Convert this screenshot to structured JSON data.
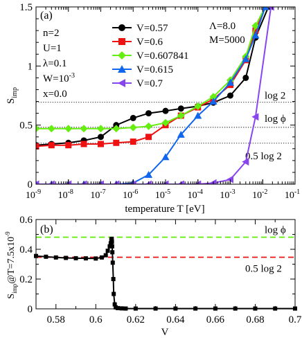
{
  "chart_data": [
    {
      "panel_label": "(a)",
      "type": "line",
      "xscale": "log",
      "xlim": [
        1e-09,
        0.1
      ],
      "ylim": [
        0,
        1.5
      ],
      "xlabel": "temperature T [eV]",
      "ylabel": "S",
      "ylabel_sub": "imp",
      "x_ticks": [
        {
          "v": 1e-09,
          "base": "10",
          "exp": "-9"
        },
        {
          "v": 1e-08,
          "base": "10",
          "exp": "-8"
        },
        {
          "v": 1e-07,
          "base": "10",
          "exp": "-7"
        },
        {
          "v": 1e-06,
          "base": "10",
          "exp": "-6"
        },
        {
          "v": 1e-05,
          "base": "10",
          "exp": "-5"
        },
        {
          "v": 0.0001,
          "base": "10",
          "exp": "-4"
        },
        {
          "v": 0.001,
          "base": "10",
          "exp": "-3"
        },
        {
          "v": 0.01,
          "base": "10",
          "exp": "-2"
        },
        {
          "v": 0.1,
          "base": "10",
          "exp": "-1"
        }
      ],
      "y_ticks": [
        {
          "v": 0,
          "label": "0"
        },
        {
          "v": 0.5,
          "label": "0.5"
        },
        {
          "v": 1,
          "label": "1"
        },
        {
          "v": 1.5,
          "label": "1.5"
        }
      ],
      "params": [
        "n=2",
        "U=1",
        "λ=0.1",
        "W=10",
        "x=0.0"
      ],
      "w_exp": "-3",
      "params_right": [
        "Λ=8.0",
        "M=5000"
      ],
      "reference_lines": [
        {
          "y": 0.6931,
          "label": "log 2"
        },
        {
          "y": 0.4812,
          "label": "log ϕ"
        },
        {
          "y": 0.3466,
          "label": "0.5 log 2"
        }
      ],
      "series": [
        {
          "name": "V=0.57",
          "color": "#000000",
          "marker": "circle",
          "x": [
            1e-09,
            3e-09,
            1e-08,
            3e-08,
            1e-07,
            3e-07,
            1e-06,
            3e-06,
            1e-05,
            3e-05,
            0.0001,
            0.0003,
            0.001,
            0.003,
            0.006,
            0.015
          ],
          "y": [
            0.33,
            0.34,
            0.35,
            0.37,
            0.4,
            0.5,
            0.56,
            0.6,
            0.62,
            0.64,
            0.66,
            0.69,
            0.75,
            0.9,
            1.24,
            1.5
          ]
        },
        {
          "name": "V=0.6",
          "color": "#ee1111",
          "marker": "square",
          "x": [
            1e-09,
            3e-09,
            1e-08,
            3e-08,
            1e-07,
            3e-07,
            1e-06,
            3e-06,
            1e-05,
            3e-05,
            0.0001,
            0.0003,
            0.001,
            0.003,
            0.006,
            0.012
          ],
          "y": [
            0.32,
            0.33,
            0.33,
            0.34,
            0.34,
            0.35,
            0.36,
            0.4,
            0.5,
            0.58,
            0.65,
            0.72,
            0.84,
            1.05,
            1.3,
            1.5
          ]
        },
        {
          "name": "V=0.607841",
          "color": "#66ee11",
          "marker": "diamond",
          "x": [
            1e-09,
            3e-09,
            1e-08,
            3e-08,
            1e-07,
            3e-07,
            1e-06,
            3e-06,
            1e-05,
            3e-05,
            0.0001,
            0.0003,
            0.001,
            0.003,
            0.006,
            0.012
          ],
          "y": [
            0.47,
            0.47,
            0.47,
            0.47,
            0.47,
            0.47,
            0.48,
            0.49,
            0.52,
            0.58,
            0.66,
            0.74,
            0.88,
            1.08,
            1.34,
            1.5
          ]
        },
        {
          "name": "V=0.615",
          "color": "#1166ee",
          "marker": "triangle-up",
          "x": [
            1e-09,
            3e-09,
            1e-08,
            3e-08,
            1e-07,
            3e-07,
            1e-06,
            3e-06,
            1e-05,
            3e-05,
            0.0001,
            0.0003,
            0.001,
            0.003,
            0.006,
            0.012
          ],
          "y": [
            0.0,
            0.0,
            0.0,
            0.0,
            0.0,
            0.0,
            0.01,
            0.08,
            0.23,
            0.42,
            0.58,
            0.7,
            0.86,
            1.06,
            1.26,
            1.5
          ]
        },
        {
          "name": "V=0.7",
          "color": "#8844ee",
          "marker": "triangle-left",
          "x": [
            1e-09,
            3e-09,
            1e-08,
            3e-08,
            1e-07,
            3e-07,
            1e-06,
            3e-06,
            1e-05,
            3e-05,
            0.0001,
            0.0003,
            0.001,
            0.003,
            0.006,
            0.018
          ],
          "y": [
            0.0,
            0.0,
            0.0,
            0.0,
            0.0,
            0.0,
            0.0,
            0.0,
            0.0,
            0.0,
            0.0,
            0.01,
            0.04,
            0.19,
            0.57,
            1.5
          ]
        }
      ]
    },
    {
      "panel_label": "(b)",
      "type": "line",
      "xlim": [
        0.57,
        0.7
      ],
      "ylim": [
        0,
        0.6
      ],
      "xlabel": "V",
      "ylabel": "S",
      "ylabel_sub": "imp",
      "ylabel_tail": "@T=7.5x10",
      "ylabel_exp": "-9",
      "x_ticks": [
        {
          "v": 0.58,
          "label": "0.58"
        },
        {
          "v": 0.6,
          "label": "0.6"
        },
        {
          "v": 0.62,
          "label": "0.62"
        },
        {
          "v": 0.64,
          "label": "0.64"
        },
        {
          "v": 0.66,
          "label": "0.66"
        },
        {
          "v": 0.68,
          "label": "0.68"
        },
        {
          "v": 0.7,
          "label": "0.7"
        }
      ],
      "y_ticks": [
        {
          "v": 0,
          "label": "0"
        },
        {
          "v": 0.2,
          "label": "0.2"
        },
        {
          "v": 0.4,
          "label": "0.4"
        },
        {
          "v": 0.6,
          "label": "0.6"
        }
      ],
      "reference_lines": [
        {
          "y": 0.4812,
          "label": "log ϕ",
          "color": "#66ee11"
        },
        {
          "y": 0.3466,
          "label": "0.5 log 2",
          "color": "#ee1111"
        }
      ],
      "series": [
        {
          "name": "",
          "color": "#000000",
          "marker": "square",
          "x": [
            0.57,
            0.575,
            0.58,
            0.585,
            0.59,
            0.595,
            0.6,
            0.603,
            0.605,
            0.606,
            0.607,
            0.6075,
            0.6078,
            0.6079,
            0.608,
            0.6081,
            0.6082,
            0.6083,
            0.6085,
            0.6088,
            0.609,
            0.6095,
            0.61,
            0.611,
            0.613,
            0.615,
            0.62,
            0.63,
            0.64,
            0.65,
            0.66,
            0.67,
            0.68,
            0.69,
            0.7
          ],
          "y": [
            0.355,
            0.35,
            0.345,
            0.342,
            0.34,
            0.339,
            0.338,
            0.345,
            0.36,
            0.39,
            0.42,
            0.44,
            0.46,
            0.47,
            0.47,
            0.45,
            0.42,
            0.38,
            0.31,
            0.2,
            0.1,
            0.03,
            0.01,
            0.005,
            0.003,
            0.002,
            0.002,
            0.002,
            0.002,
            0.002,
            0.002,
            0.002,
            0.002,
            0.002,
            0.002
          ]
        }
      ]
    }
  ]
}
